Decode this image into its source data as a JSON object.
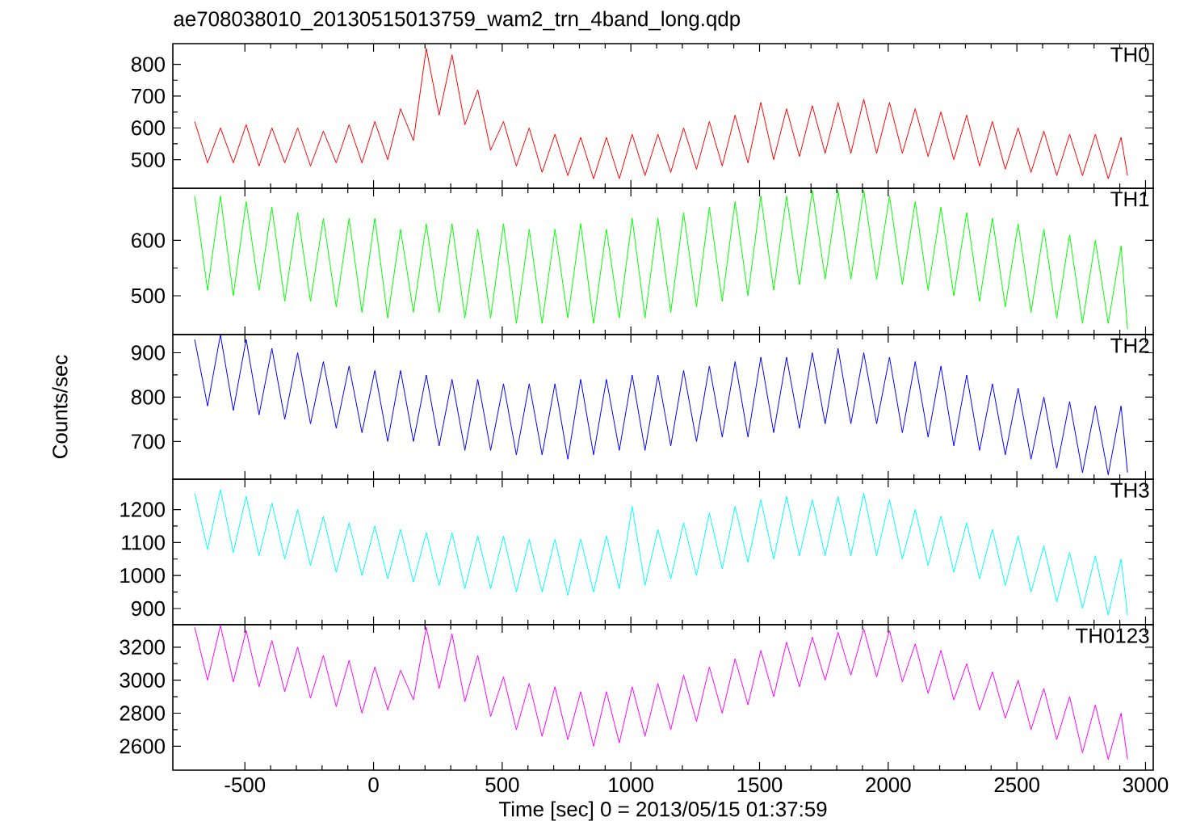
{
  "chart_data": [
    {
      "type": "line",
      "title": "ae708038010_20130515013759_wam2_trn_4band_long.qdp",
      "annotations": [
        "TH0"
      ],
      "tick_labels": "y",
      "xlim": [
        -780,
        3030
      ],
      "xticks": [
        -500,
        0,
        500,
        1000,
        1500,
        2000,
        2500,
        3000
      ],
      "ylim": [
        410,
        865
      ],
      "yticks": [
        500,
        600,
        700,
        800
      ],
      "x": [
        -695,
        -645,
        -595,
        -545,
        -495,
        -445,
        -395,
        -345,
        -295,
        -245,
        -195,
        -145,
        -95,
        -45,
        5,
        55,
        105,
        155,
        205,
        255,
        305,
        355,
        405,
        455,
        505,
        555,
        605,
        655,
        705,
        755,
        805,
        855,
        905,
        955,
        1005,
        1055,
        1105,
        1155,
        1205,
        1255,
        1305,
        1355,
        1405,
        1455,
        1505,
        1555,
        1605,
        1655,
        1705,
        1755,
        1805,
        1855,
        1905,
        1955,
        2005,
        2055,
        2105,
        2155,
        2205,
        2255,
        2305,
        2355,
        2405,
        2455,
        2505,
        2555,
        2605,
        2655,
        2705,
        2755,
        2805,
        2855,
        2905,
        2930
      ],
      "series": [
        {
          "color": "#ff0000",
          "values": [
            620,
            490,
            600,
            490,
            610,
            480,
            600,
            490,
            600,
            480,
            590,
            490,
            610,
            490,
            620,
            500,
            660,
            560,
            850,
            640,
            830,
            610,
            720,
            530,
            620,
            480,
            600,
            460,
            580,
            450,
            570,
            440,
            570,
            440,
            580,
            450,
            580,
            460,
            600,
            470,
            620,
            480,
            640,
            490,
            680,
            500,
            660,
            510,
            670,
            520,
            680,
            520,
            690,
            520,
            680,
            520,
            660,
            510,
            650,
            500,
            640,
            480,
            620,
            470,
            600,
            460,
            590,
            450,
            580,
            450,
            580,
            440,
            570,
            450
          ]
        }
      ]
    },
    {
      "type": "line",
      "annotations": [
        "TH1"
      ],
      "tick_labels": "y",
      "xlim": [
        -780,
        3030
      ],
      "xticks": [
        -500,
        0,
        500,
        1000,
        1500,
        2000,
        2500,
        3000
      ],
      "ylim": [
        430,
        694
      ],
      "yticks": [
        500,
        600
      ],
      "x": [
        -695,
        -645,
        -595,
        -545,
        -495,
        -445,
        -395,
        -345,
        -295,
        -245,
        -195,
        -145,
        -95,
        -45,
        5,
        55,
        105,
        155,
        205,
        255,
        305,
        355,
        405,
        455,
        505,
        555,
        605,
        655,
        705,
        755,
        805,
        855,
        905,
        955,
        1005,
        1055,
        1105,
        1155,
        1205,
        1255,
        1305,
        1355,
        1405,
        1455,
        1505,
        1555,
        1605,
        1655,
        1705,
        1755,
        1805,
        1855,
        1905,
        1955,
        2005,
        2055,
        2105,
        2155,
        2205,
        2255,
        2305,
        2355,
        2405,
        2455,
        2505,
        2555,
        2605,
        2655,
        2705,
        2755,
        2805,
        2855,
        2905,
        2930
      ],
      "series": [
        {
          "color": "#00ff00",
          "values": [
            680,
            510,
            680,
            500,
            670,
            510,
            660,
            490,
            650,
            490,
            640,
            480,
            640,
            470,
            640,
            460,
            620,
            470,
            630,
            470,
            630,
            460,
            620,
            460,
            630,
            450,
            620,
            450,
            620,
            460,
            630,
            450,
            620,
            460,
            640,
            460,
            640,
            470,
            650,
            480,
            660,
            490,
            670,
            500,
            680,
            510,
            680,
            520,
            690,
            530,
            690,
            530,
            690,
            530,
            680,
            520,
            670,
            510,
            660,
            500,
            650,
            490,
            640,
            480,
            630,
            470,
            620,
            460,
            610,
            450,
            600,
            450,
            590,
            440
          ]
        }
      ]
    },
    {
      "type": "line",
      "annotations": [
        "TH2"
      ],
      "ylabel": "Counts/sec",
      "tick_labels": "y",
      "xlim": [
        -780,
        3030
      ],
      "xticks": [
        -500,
        0,
        500,
        1000,
        1500,
        2000,
        2500,
        3000
      ],
      "ylim": [
        615,
        941
      ],
      "yticks": [
        700,
        800,
        900
      ],
      "x": [
        -695,
        -645,
        -595,
        -545,
        -495,
        -445,
        -395,
        -345,
        -295,
        -245,
        -195,
        -145,
        -95,
        -45,
        5,
        55,
        105,
        155,
        205,
        255,
        305,
        355,
        405,
        455,
        505,
        555,
        605,
        655,
        705,
        755,
        805,
        855,
        905,
        955,
        1005,
        1055,
        1105,
        1155,
        1205,
        1255,
        1305,
        1355,
        1405,
        1455,
        1505,
        1555,
        1605,
        1655,
        1705,
        1755,
        1805,
        1855,
        1905,
        1955,
        2005,
        2055,
        2105,
        2155,
        2205,
        2255,
        2305,
        2355,
        2405,
        2455,
        2505,
        2555,
        2605,
        2655,
        2705,
        2755,
        2805,
        2855,
        2905,
        2930
      ],
      "series": [
        {
          "color": "#0000ff",
          "values": [
            930,
            780,
            940,
            770,
            930,
            760,
            910,
            750,
            900,
            740,
            880,
            730,
            870,
            720,
            860,
            700,
            860,
            700,
            850,
            690,
            840,
            680,
            840,
            680,
            830,
            670,
            830,
            670,
            830,
            660,
            840,
            670,
            840,
            680,
            850,
            680,
            850,
            690,
            860,
            700,
            870,
            710,
            880,
            710,
            890,
            720,
            890,
            730,
            900,
            740,
            910,
            740,
            900,
            740,
            890,
            720,
            880,
            710,
            870,
            690,
            850,
            680,
            830,
            670,
            820,
            660,
            800,
            640,
            790,
            630,
            780,
            625,
            780,
            630
          ]
        }
      ]
    },
    {
      "type": "line",
      "annotations": [
        "TH3"
      ],
      "tick_labels": "y",
      "xlim": [
        -780,
        3030
      ],
      "xticks": [
        -500,
        0,
        500,
        1000,
        1500,
        2000,
        2500,
        3000
      ],
      "ylim": [
        851,
        1292
      ],
      "yticks": [
        900,
        1000,
        1100,
        1200
      ],
      "x": [
        -695,
        -645,
        -595,
        -545,
        -495,
        -445,
        -395,
        -345,
        -295,
        -245,
        -195,
        -145,
        -95,
        -45,
        5,
        55,
        105,
        155,
        205,
        255,
        305,
        355,
        405,
        455,
        505,
        555,
        605,
        655,
        705,
        755,
        805,
        855,
        905,
        955,
        1005,
        1055,
        1105,
        1155,
        1205,
        1255,
        1305,
        1355,
        1405,
        1455,
        1505,
        1555,
        1605,
        1655,
        1705,
        1755,
        1805,
        1855,
        1905,
        1955,
        2005,
        2055,
        2105,
        2155,
        2205,
        2255,
        2305,
        2355,
        2405,
        2455,
        2505,
        2555,
        2605,
        2655,
        2705,
        2755,
        2805,
        2855,
        2905,
        2930
      ],
      "series": [
        {
          "color": "#00ffff",
          "values": [
            1250,
            1080,
            1260,
            1070,
            1240,
            1060,
            1220,
            1050,
            1200,
            1030,
            1180,
            1010,
            1160,
            1000,
            1150,
            990,
            1140,
            980,
            1130,
            970,
            1130,
            960,
            1120,
            960,
            1120,
            950,
            1110,
            950,
            1110,
            940,
            1110,
            950,
            1120,
            960,
            1210,
            970,
            1140,
            990,
            1160,
            1000,
            1190,
            1020,
            1210,
            1040,
            1230,
            1050,
            1240,
            1060,
            1230,
            1060,
            1240,
            1060,
            1250,
            1060,
            1230,
            1050,
            1200,
            1030,
            1180,
            1010,
            1160,
            990,
            1140,
            970,
            1120,
            950,
            1090,
            920,
            1070,
            900,
            1060,
            880,
            1050,
            880
          ]
        }
      ]
    },
    {
      "type": "line",
      "annotations": [
        "TH0123"
      ],
      "xlabel": "Time [sec] 0 = 2013/05/15 01:37:59",
      "xlim": [
        -780,
        3030
      ],
      "xticks": [
        -500,
        0,
        500,
        1000,
        1500,
        2000,
        2500,
        3000
      ],
      "ylim": [
        2455,
        3336
      ],
      "yticks": [
        2600,
        2800,
        3000,
        3200
      ],
      "x": [
        -695,
        -645,
        -595,
        -545,
        -495,
        -445,
        -395,
        -345,
        -295,
        -245,
        -195,
        -145,
        -95,
        -45,
        5,
        55,
        105,
        155,
        205,
        255,
        305,
        355,
        405,
        455,
        505,
        555,
        605,
        655,
        705,
        755,
        805,
        855,
        905,
        955,
        1005,
        1055,
        1105,
        1155,
        1205,
        1255,
        1305,
        1355,
        1405,
        1455,
        1505,
        1555,
        1605,
        1655,
        1705,
        1755,
        1805,
        1855,
        1905,
        1955,
        2005,
        2055,
        2105,
        2155,
        2205,
        2255,
        2305,
        2355,
        2405,
        2455,
        2505,
        2555,
        2605,
        2655,
        2705,
        2755,
        2805,
        2855,
        2905,
        2930
      ],
      "series": [
        {
          "color": "#ff00ff",
          "values": [
            3320,
            3000,
            3330,
            2990,
            3300,
            2960,
            3240,
            2930,
            3200,
            2890,
            3150,
            2840,
            3120,
            2800,
            3080,
            2820,
            3060,
            2880,
            3320,
            2950,
            3280,
            2870,
            3150,
            2780,
            3020,
            2700,
            2980,
            2660,
            2960,
            2640,
            2930,
            2600,
            2930,
            2620,
            2960,
            2660,
            2980,
            2700,
            3030,
            2750,
            3080,
            2800,
            3130,
            2850,
            3180,
            2900,
            3230,
            2960,
            3260,
            3000,
            3290,
            3030,
            3310,
            3020,
            3300,
            2990,
            3220,
            2920,
            3180,
            2880,
            3100,
            2820,
            3050,
            2770,
            3000,
            2700,
            2950,
            2640,
            2900,
            2560,
            2850,
            2520,
            2800,
            2520
          ]
        }
      ]
    }
  ]
}
